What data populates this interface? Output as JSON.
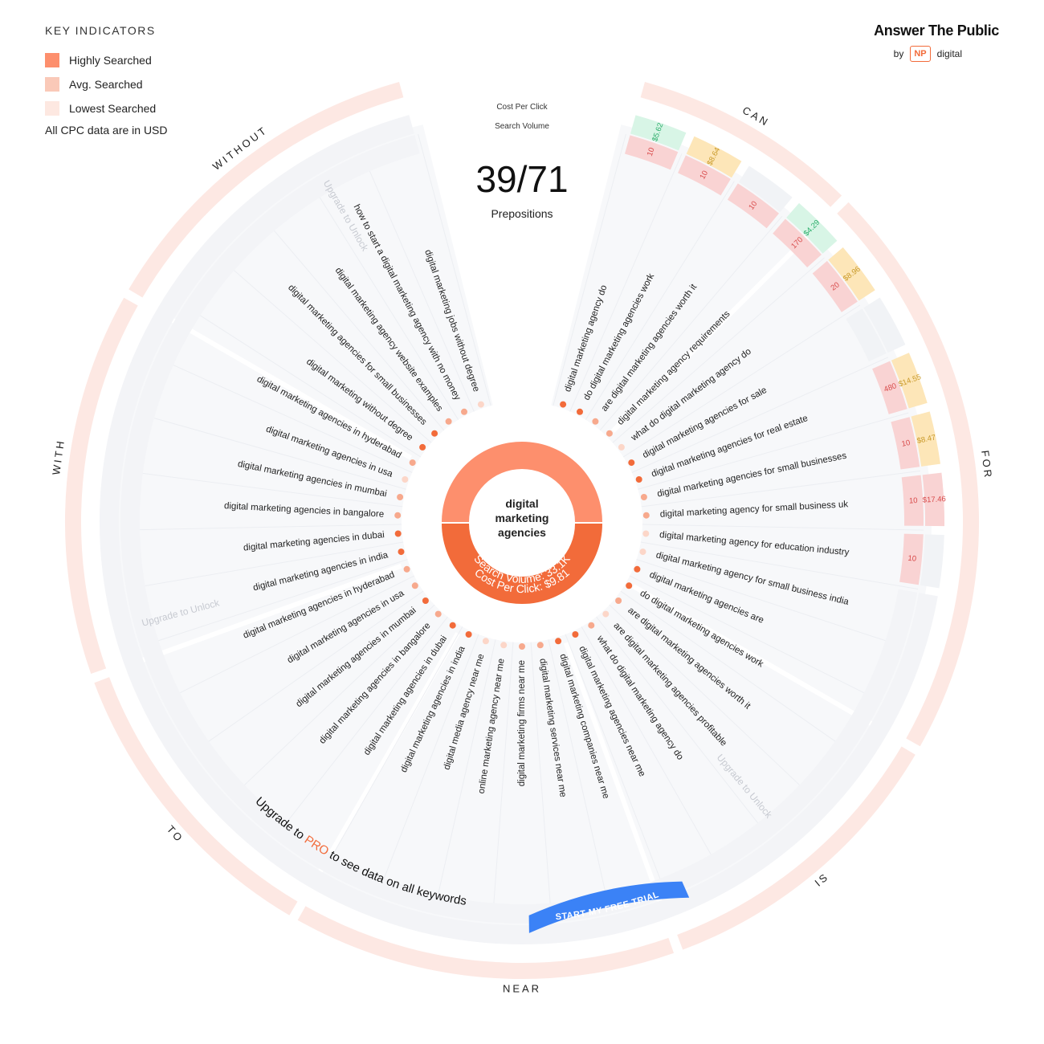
{
  "legend": {
    "title": "KEY INDICATORS",
    "items": [
      {
        "label": "Highly Searched",
        "color": "#fd8f6d"
      },
      {
        "label": "Avg. Searched",
        "color": "#fac9b8"
      },
      {
        "label": "Lowest Searched",
        "color": "#fde8e1"
      }
    ],
    "note": "All CPC data are in USD"
  },
  "brand": {
    "name": "Answer The Public",
    "by": "by",
    "np": "NP",
    "digital": "digital"
  },
  "header": {
    "cpc_label": "Cost Per Click",
    "volume_label": "Search Volume",
    "count": "39/71",
    "count_label": "Prepositions"
  },
  "center": {
    "keyword": "digital marketing agencies",
    "search_volume": "Search Volume: 33.1K",
    "cost_per_click": "Cost Per Click: $9.81"
  },
  "groups": [
    "CAN",
    "FOR",
    "IS",
    "NEAR",
    "TO",
    "WITH",
    "WITHOUT"
  ],
  "locked_label": "Upgrade to Unlock",
  "upgrade": {
    "prefix": "Upgrade to ",
    "pro": "PRO",
    "suffix": " to see data on all keywords",
    "button": "START MY FREE TRIAL"
  },
  "keywords": [
    "digital marketing agency do",
    "do digital marketing agencies work",
    "are digital marketing agencies worth it",
    "digital marketing agency requirements",
    "what do digital marketing agency do",
    "digital marketing agencies for sale",
    "digital marketing agencies for real estate",
    "digital marketing agencies for small businesses",
    "digital marketing agency for small business uk",
    "digital marketing agency for education industry",
    "digital marketing agency for small business india",
    "digital marketing agencies are",
    "do digital marketing agencies work",
    "are digital marketing agencies worth it",
    "are digital marketing agencies profitable",
    "what do digital marketing agency do",
    "digital marketing agencies near me",
    "digital marketing companies near me",
    "digital marketing services near me",
    "digital marketing firms near me",
    "online marketing agency near me",
    "digital media agency near me",
    "digital marketing agencies in india",
    "digital marketing agencies in dubai",
    "digital marketing agencies in bangalore",
    "digital marketing agencies in mumbai",
    "digital marketing agencies in usa",
    "digital marketing agencies in hyderabad",
    "digital marketing agencies in india",
    "digital marketing agencies in dubai",
    "digital marketing agencies in bangalore",
    "digital marketing agencies in mumbai",
    "digital marketing agencies in usa",
    "digital marketing agencies in hyderabad",
    "digital marketing without degree",
    "digital marketing agencies for small businesses",
    "digital marketing agency website examples",
    "how to start a digital marketing agency with no money",
    "digital marketing jobs without degree"
  ],
  "keyword_levels": [
    "high",
    "high",
    "mid",
    "mid",
    "low",
    "high",
    "high",
    "mid",
    "mid",
    "low",
    "low",
    "high",
    "high",
    "mid",
    "low",
    "mid",
    "high",
    "high",
    "mid",
    "mid",
    "low",
    "low",
    "high",
    "high",
    "mid",
    "high",
    "mid",
    "mid",
    "high",
    "high",
    "mid",
    "mid",
    "low",
    "mid",
    "high",
    "high",
    "mid",
    "mid",
    "low"
  ],
  "metrics": [
    {
      "volume": "10",
      "cpc": "$5.62",
      "cpc_level": "green"
    },
    {
      "volume": "10",
      "cpc": "$8.64",
      "cpc_level": "yellow"
    },
    {
      "volume": "10",
      "cpc": "",
      "cpc_level": "none"
    },
    {
      "volume": "170",
      "cpc": "$4.29",
      "cpc_level": "green"
    },
    {
      "volume": "20",
      "cpc": "$8.96",
      "cpc_level": "yellow"
    },
    {
      "volume": "",
      "cpc": "",
      "cpc_level": "none"
    },
    {
      "volume": "480",
      "cpc": "$14.55",
      "cpc_level": "yellow"
    },
    {
      "volume": "10",
      "cpc": "$8.47",
      "cpc_level": "yellow"
    },
    {
      "volume": "10",
      "cpc": "$17.46",
      "cpc_level": "red"
    },
    {
      "volume": "10",
      "cpc": "",
      "cpc_level": "none"
    }
  ],
  "colors": {
    "accent": "#f26b3a",
    "accent_light": "#fd8f6d",
    "ring": "#fde8e3",
    "pro": "#f26b3a",
    "button": "#3b82f6",
    "vol_bg": "#f9d3d3",
    "vol_text": "#d84a4a",
    "cpc_green_bg": "#d8f5e6",
    "cpc_green_text": "#2cae6b",
    "cpc_yellow_bg": "#fde6b8",
    "cpc_yellow_text": "#c99a2a",
    "cpc_red_bg": "#f9d3d3",
    "cpc_red_text": "#d84a4a"
  }
}
